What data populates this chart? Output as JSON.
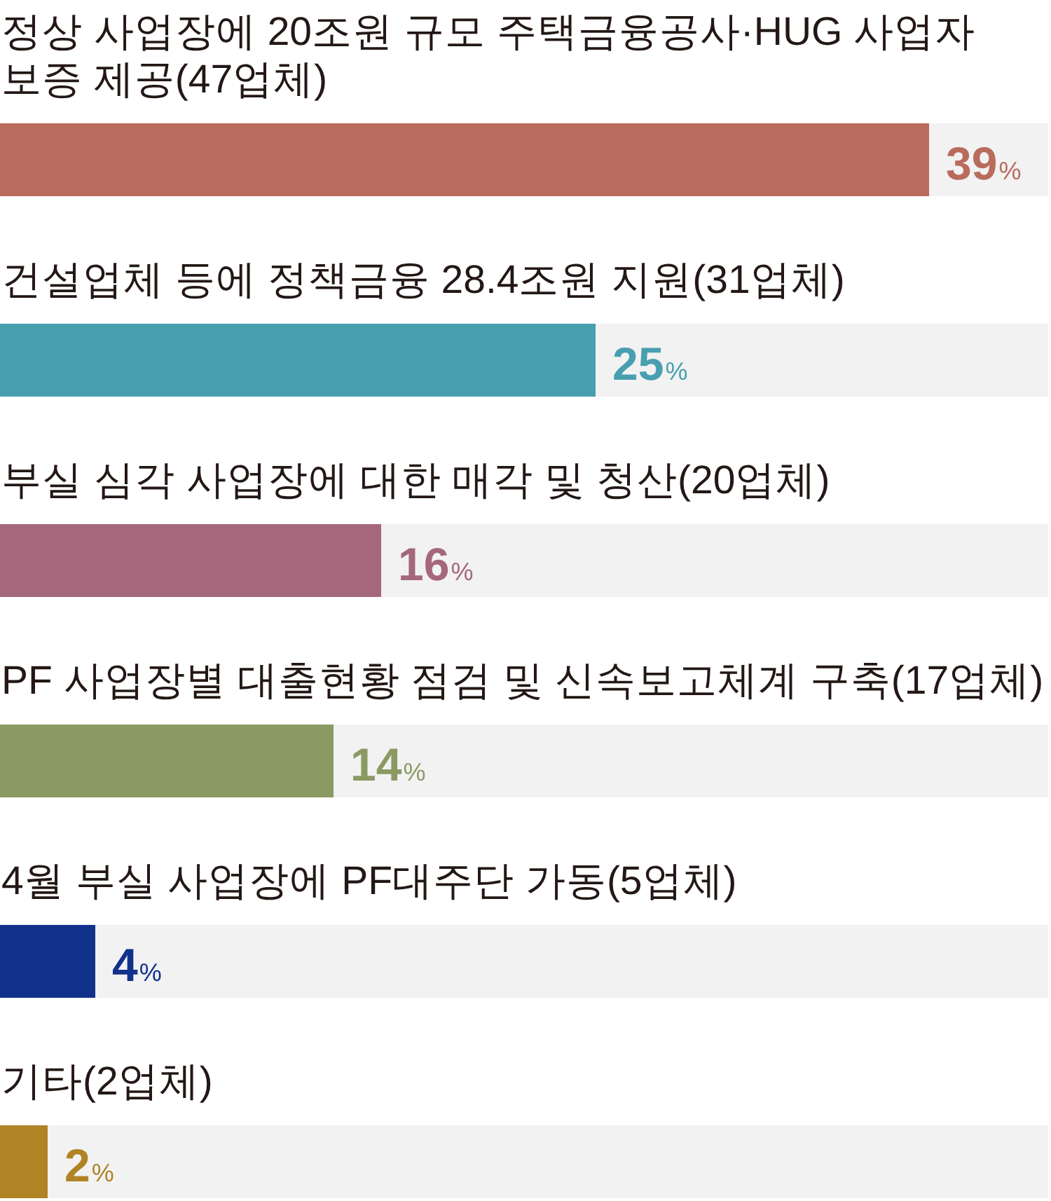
{
  "chart_data": {
    "type": "bar",
    "orientation": "horizontal",
    "categories": [
      "정상 사업장에 20조원 규모 주택금융공사·HUG 사업자 보증 제공(47업체)",
      "건설업체 등에 정책금융 28.4조원 지원(31업체)",
      "부실 심각 사업장에 대한 매각 및 청산(20업체)",
      "PF 사업장별 대출현황 점검 및 신속보고체계 구축(17업체)",
      "4월 부실 사업장에 PF대주단 가동(5업체)",
      "기타(2업체)"
    ],
    "values": [
      39,
      25,
      16,
      14,
      4,
      2
    ],
    "colors": [
      "#b96b5d",
      "#489fb0",
      "#a5677c",
      "#8a9a62",
      "#12318a",
      "#b08425"
    ],
    "value_labels": [
      "39%",
      "25%",
      "16%",
      "14%",
      "4%",
      "2%"
    ],
    "xlim": [
      0,
      44
    ],
    "tick_labels": "y"
  }
}
